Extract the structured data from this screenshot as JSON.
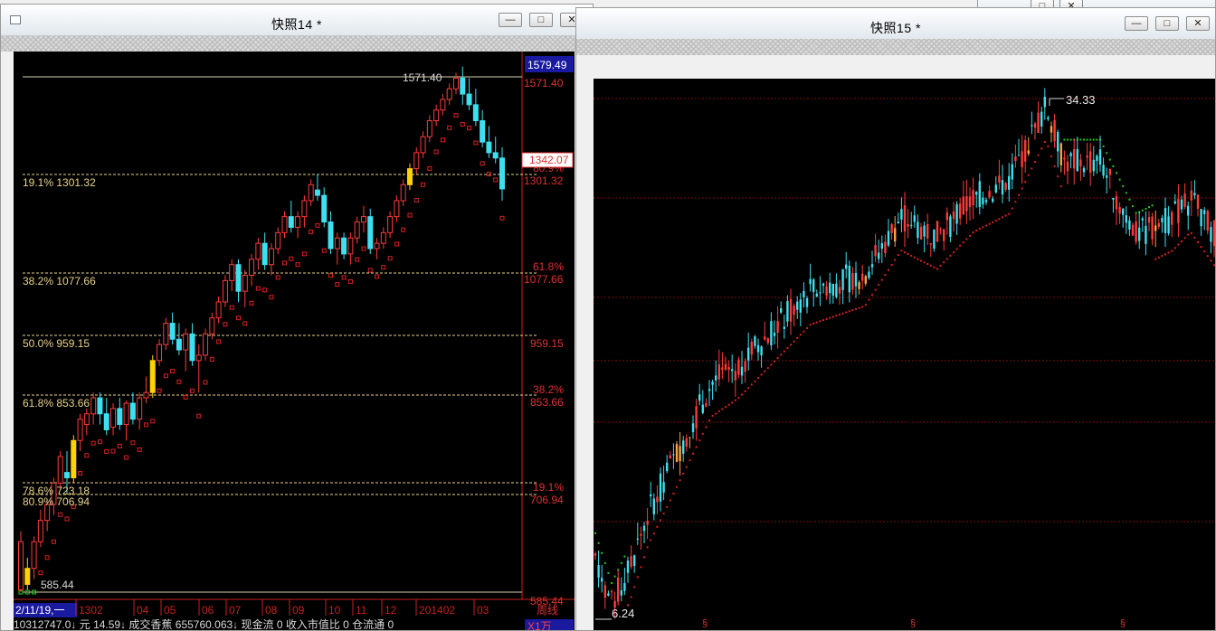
{
  "window1": {
    "title": "快照14 *",
    "buttons": [
      "—",
      "□",
      "✕"
    ],
    "price_top_box": "1579.49",
    "high_label": "1571.40",
    "current_box": "1342.07",
    "right_prices": [
      "1571.40",
      "1301.32",
      "1077.66",
      "959.15",
      "853.66",
      "706.94",
      "585.44"
    ],
    "right_pcts": [
      "80.9%",
      "61.8%",
      "38.2%",
      "19.1%"
    ],
    "fib_labels": [
      "19.1% 1301.32",
      "38.2% 1077.66",
      "50.0% 959.15",
      "61.8% 853.66",
      "78.6% 723.18",
      "80.9% 706.94"
    ],
    "low_label": "585.44",
    "date_box": "2/11/19,一",
    "x_ticks": [
      "1302",
      "04",
      "05",
      "06",
      "07",
      "08",
      "09",
      "10",
      "11",
      "12",
      "201402",
      "03"
    ],
    "period_label": "周线",
    "status_text": "10312747.0↓ 元  14.59↓  成交香蕉 655760.063↓  现金流 0  收入市值比 0  仓流通 0",
    "status_badge": "X1万"
  },
  "window2": {
    "title": "快照15 *",
    "buttons": [
      "—",
      "□",
      "✕"
    ],
    "high_label": "34.33",
    "low_label": "6.24",
    "markers": [
      "§",
      "§",
      "§"
    ]
  },
  "background_window_buttons": [
    "□",
    "✕"
  ],
  "colors": {
    "up": "#ff3a3a",
    "down": "#3ee0f0",
    "highlight": "#ffd200",
    "stop_up": "#d92020",
    "stop_down": "#22c722",
    "fib_line": "#e8d28a",
    "axis_red": "#c82020"
  },
  "chart_data": [
    {
      "type": "candlestick",
      "title": "快照14 *",
      "period": "周线",
      "ylim": [
        585.44,
        1579.49
      ],
      "levels": [
        1571.4,
        1301.32,
        1077.66,
        959.15,
        853.66,
        723.18,
        706.94,
        585.44
      ],
      "candles": [
        {
          "o": 590,
          "h": 700,
          "l": 585,
          "c": 680
        },
        {
          "o": 600,
          "h": 650,
          "l": 590,
          "c": 630
        },
        {
          "o": 630,
          "h": 690,
          "l": 610,
          "c": 680
        },
        {
          "o": 680,
          "h": 740,
          "l": 670,
          "c": 720
        },
        {
          "o": 720,
          "h": 760,
          "l": 700,
          "c": 750
        },
        {
          "o": 750,
          "h": 800,
          "l": 730,
          "c": 790
        },
        {
          "o": 790,
          "h": 850,
          "l": 780,
          "c": 840
        },
        {
          "o": 810,
          "h": 850,
          "l": 770,
          "c": 800
        },
        {
          "o": 800,
          "h": 880,
          "l": 790,
          "c": 870
        },
        {
          "o": 870,
          "h": 920,
          "l": 850,
          "c": 910
        },
        {
          "o": 900,
          "h": 930,
          "l": 880,
          "c": 920
        },
        {
          "o": 920,
          "h": 960,
          "l": 900,
          "c": 950
        },
        {
          "o": 950,
          "h": 960,
          "l": 900,
          "c": 920
        },
        {
          "o": 920,
          "h": 950,
          "l": 880,
          "c": 890
        },
        {
          "o": 895,
          "h": 940,
          "l": 880,
          "c": 930
        },
        {
          "o": 930,
          "h": 950,
          "l": 890,
          "c": 900
        },
        {
          "o": 900,
          "h": 945,
          "l": 870,
          "c": 940
        },
        {
          "o": 940,
          "h": 960,
          "l": 900,
          "c": 910
        },
        {
          "o": 910,
          "h": 960,
          "l": 890,
          "c": 950
        },
        {
          "o": 950,
          "h": 990,
          "l": 940,
          "c": 960
        },
        {
          "o": 960,
          "h": 1030,
          "l": 950,
          "c": 1020
        },
        {
          "o": 1020,
          "h": 1060,
          "l": 1010,
          "c": 1050
        },
        {
          "o": 1050,
          "h": 1100,
          "l": 1040,
          "c": 1090
        },
        {
          "o": 1090,
          "h": 1110,
          "l": 1050,
          "c": 1060
        },
        {
          "o": 1060,
          "h": 1090,
          "l": 1030,
          "c": 1040
        },
        {
          "o": 1040,
          "h": 1080,
          "l": 1000,
          "c": 1070
        },
        {
          "o": 1070,
          "h": 1090,
          "l": 1010,
          "c": 1020
        },
        {
          "o": 1020,
          "h": 1050,
          "l": 960,
          "c": 1030
        },
        {
          "o": 1030,
          "h": 1080,
          "l": 1020,
          "c": 1070
        },
        {
          "o": 1070,
          "h": 1110,
          "l": 1060,
          "c": 1100
        },
        {
          "o": 1100,
          "h": 1140,
          "l": 1090,
          "c": 1130
        },
        {
          "o": 1130,
          "h": 1180,
          "l": 1120,
          "c": 1170
        },
        {
          "o": 1170,
          "h": 1210,
          "l": 1150,
          "c": 1200
        },
        {
          "o": 1200,
          "h": 1210,
          "l": 1130,
          "c": 1150
        },
        {
          "o": 1150,
          "h": 1190,
          "l": 1120,
          "c": 1180
        },
        {
          "o": 1180,
          "h": 1220,
          "l": 1160,
          "c": 1210
        },
        {
          "o": 1210,
          "h": 1250,
          "l": 1190,
          "c": 1240
        },
        {
          "o": 1240,
          "h": 1260,
          "l": 1190,
          "c": 1200
        },
        {
          "o": 1200,
          "h": 1240,
          "l": 1180,
          "c": 1230
        },
        {
          "o": 1230,
          "h": 1270,
          "l": 1220,
          "c": 1260
        },
        {
          "o": 1260,
          "h": 1300,
          "l": 1250,
          "c": 1290
        },
        {
          "o": 1290,
          "h": 1320,
          "l": 1260,
          "c": 1270
        },
        {
          "o": 1270,
          "h": 1300,
          "l": 1250,
          "c": 1290
        },
        {
          "o": 1290,
          "h": 1330,
          "l": 1270,
          "c": 1320
        },
        {
          "o": 1320,
          "h": 1360,
          "l": 1310,
          "c": 1350
        },
        {
          "o": 1340,
          "h": 1370,
          "l": 1320,
          "c": 1330
        },
        {
          "o": 1330,
          "h": 1345,
          "l": 1270,
          "c": 1280
        },
        {
          "o": 1280,
          "h": 1300,
          "l": 1220,
          "c": 1230
        },
        {
          "o": 1230,
          "h": 1260,
          "l": 1200,
          "c": 1250
        },
        {
          "o": 1250,
          "h": 1260,
          "l": 1210,
          "c": 1220
        },
        {
          "o": 1220,
          "h": 1260,
          "l": 1200,
          "c": 1250
        },
        {
          "o": 1250,
          "h": 1290,
          "l": 1240,
          "c": 1280
        },
        {
          "o": 1280,
          "h": 1310,
          "l": 1260,
          "c": 1290
        },
        {
          "o": 1290,
          "h": 1305,
          "l": 1220,
          "c": 1230
        },
        {
          "o": 1230,
          "h": 1250,
          "l": 1210,
          "c": 1240
        },
        {
          "o": 1240,
          "h": 1270,
          "l": 1230,
          "c": 1260
        },
        {
          "o": 1260,
          "h": 1300,
          "l": 1250,
          "c": 1290
        },
        {
          "o": 1290,
          "h": 1330,
          "l": 1280,
          "c": 1320
        },
        {
          "o": 1320,
          "h": 1360,
          "l": 1310,
          "c": 1350
        },
        {
          "o": 1350,
          "h": 1390,
          "l": 1340,
          "c": 1380
        },
        {
          "o": 1380,
          "h": 1420,
          "l": 1370,
          "c": 1410
        },
        {
          "o": 1410,
          "h": 1450,
          "l": 1400,
          "c": 1440
        },
        {
          "o": 1440,
          "h": 1480,
          "l": 1430,
          "c": 1470
        },
        {
          "o": 1470,
          "h": 1500,
          "l": 1460,
          "c": 1490
        },
        {
          "o": 1490,
          "h": 1520,
          "l": 1480,
          "c": 1510
        },
        {
          "o": 1510,
          "h": 1540,
          "l": 1500,
          "c": 1530
        },
        {
          "o": 1530,
          "h": 1560,
          "l": 1520,
          "c": 1550
        },
        {
          "o": 1550,
          "h": 1571.4,
          "l": 1500,
          "c": 1520
        },
        {
          "o": 1520,
          "h": 1550,
          "l": 1490,
          "c": 1500
        },
        {
          "o": 1500,
          "h": 1530,
          "l": 1460,
          "c": 1470
        },
        {
          "o": 1470,
          "h": 1490,
          "l": 1420,
          "c": 1430
        },
        {
          "o": 1430,
          "h": 1460,
          "l": 1400,
          "c": 1410
        },
        {
          "o": 1410,
          "h": 1440,
          "l": 1390,
          "c": 1400
        },
        {
          "o": 1400,
          "h": 1420,
          "l": 1320,
          "c": 1342.07
        }
      ]
    },
    {
      "type": "candlestick",
      "title": "快照15 *",
      "ylim": [
        6.24,
        34.33
      ],
      "candles": []
    }
  ]
}
